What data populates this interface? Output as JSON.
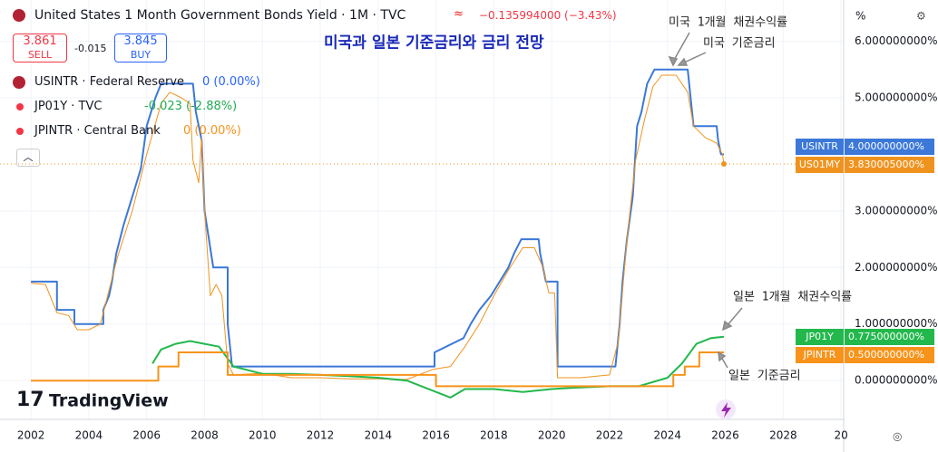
{
  "header": {
    "symbol_title": "United States 1 Month Government Bonds Yield · 1M · TVC",
    "change": "−0.135994000 (−3.43%)"
  },
  "trade": {
    "sell_price": "3.861",
    "sell_label": "SELL",
    "spread": "-0.015",
    "buy_price": "3.845",
    "buy_label": "BUY"
  },
  "legend": [
    {
      "label": "USINTR · Federal Reserve",
      "value": "0 (0.00%)",
      "color": "#2962ff"
    },
    {
      "label": "JP01Y · TVC",
      "value": "-0.023 (-2.88%)",
      "color": "#22ab52"
    },
    {
      "label": "JPINTR · Central Bank",
      "value": "0 (0.00%)",
      "color": "#f7931a"
    }
  ],
  "axis_unit": "%",
  "brand": "TradingView",
  "chart_data": {
    "type": "line",
    "title": "미국과 일본 기준금리와 금리 전망",
    "xlim": [
      2000.93,
      2030.09
    ],
    "ylim": [
      -0.67,
      6.73
    ],
    "grid": true,
    "xticks": [
      2002,
      2004,
      2006,
      2008,
      2010,
      2012,
      2014,
      2016,
      2018,
      2020,
      2022,
      2024,
      2026,
      2028,
      {
        "value": 2030,
        "label": "20"
      }
    ],
    "yticks": [
      {
        "value": 0,
        "label": "0.000000000%"
      },
      {
        "value": 1,
        "label": "1.000000000%"
      },
      {
        "value": 2,
        "label": "2.000000000%"
      },
      {
        "value": 3,
        "label": "3.000000000%"
      },
      {
        "value": 5,
        "label": "5.000000000%"
      },
      {
        "value": 6,
        "label": "6.000000000%"
      }
    ],
    "series": [
      {
        "name": "USINTR",
        "color": "#3b78d8",
        "value_label": "4.000000000%",
        "x": [
          2002.0,
          2002.9,
          2002.9,
          2003.5,
          2003.5,
          2004.5,
          2004.5,
          2004.7,
          2004.8,
          2004.95,
          2005.2,
          2005.5,
          2005.8,
          2006.0,
          2006.3,
          2006.5,
          2007.6,
          2007.7,
          2007.9,
          2008.0,
          2008.3,
          2008.8,
          2008.8,
          2008.95,
          2015.95,
          2015.95,
          2016.95,
          2017.2,
          2017.5,
          2017.9,
          2018.2,
          2018.5,
          2018.7,
          2018.95,
          2019.55,
          2019.6,
          2019.7,
          2019.8,
          2020.2,
          2020.2,
          2022.2,
          2022.35,
          2022.45,
          2022.6,
          2022.8,
          2022.95,
          2023.1,
          2023.3,
          2023.55,
          2024.7,
          2024.8,
          2024.9,
          2025.7,
          2025.75,
          2025.85,
          2025.95
        ],
        "values": [
          1.75,
          1.75,
          1.25,
          1.25,
          1.0,
          1.0,
          1.25,
          1.5,
          1.75,
          2.25,
          2.75,
          3.25,
          3.75,
          4.5,
          5.0,
          5.25,
          5.25,
          4.75,
          4.25,
          3.0,
          2.0,
          2.0,
          1.0,
          0.25,
          0.25,
          0.5,
          0.75,
          1.0,
          1.25,
          1.5,
          1.75,
          2.0,
          2.25,
          2.5,
          2.5,
          2.25,
          2.0,
          1.75,
          1.75,
          0.25,
          0.25,
          1.0,
          1.75,
          2.5,
          3.25,
          4.5,
          4.75,
          5.25,
          5.5,
          5.5,
          5.0,
          4.5,
          4.5,
          4.25,
          4.0,
          4.0
        ]
      },
      {
        "name": "US01MY",
        "color": "#f0931e",
        "value_label": "3.830005000%",
        "x": [
          2002.0,
          2002.5,
          2002.9,
          2003.3,
          2003.6,
          2004.0,
          2004.4,
          2004.7,
          2005.0,
          2005.5,
          2006.0,
          2006.5,
          2006.8,
          2007.2,
          2007.5,
          2007.6,
          2007.8,
          2007.9,
          2008.0,
          2008.2,
          2008.4,
          2008.6,
          2008.8,
          2009.0,
          2010.0,
          2011.0,
          2012.0,
          2013.0,
          2014.0,
          2015.0,
          2015.9,
          2016.5,
          2017.0,
          2017.5,
          2018.0,
          2018.5,
          2019.0,
          2019.4,
          2019.7,
          2019.9,
          2020.1,
          2020.2,
          2021.0,
          2022.0,
          2022.3,
          2022.6,
          2022.9,
          2023.2,
          2023.5,
          2023.8,
          2024.3,
          2024.7,
          2024.9,
          2025.3,
          2025.7,
          2025.9,
          2025.95
        ],
        "values": [
          1.72,
          1.7,
          1.2,
          1.15,
          0.9,
          0.9,
          1.0,
          1.6,
          2.2,
          3.0,
          4.0,
          4.9,
          5.1,
          5.0,
          4.9,
          3.9,
          3.5,
          4.3,
          3.0,
          1.5,
          1.7,
          1.5,
          0.3,
          0.1,
          0.13,
          0.05,
          0.05,
          0.03,
          0.03,
          0.02,
          0.2,
          0.25,
          0.6,
          1.0,
          1.5,
          1.95,
          2.35,
          2.35,
          2.0,
          1.55,
          1.55,
          0.05,
          0.05,
          0.1,
          0.7,
          2.5,
          3.9,
          4.6,
          5.2,
          5.4,
          5.4,
          5.1,
          4.5,
          4.3,
          4.2,
          4.0,
          3.83
        ]
      },
      {
        "name": "JP01Y",
        "color": "#22b84c",
        "value_label": "0.775000000%",
        "x": [
          2006.2,
          2006.5,
          2007.0,
          2007.5,
          2008.0,
          2008.5,
          2009.0,
          2010.0,
          2011.0,
          2012.0,
          2013.0,
          2014.0,
          2015.0,
          2016.0,
          2016.5,
          2017.0,
          2018.0,
          2019.0,
          2020.0,
          2021.0,
          2022.0,
          2023.0,
          2024.0,
          2024.5,
          2025.0,
          2025.5,
          2025.95
        ],
        "values": [
          0.3,
          0.55,
          0.65,
          0.7,
          0.65,
          0.6,
          0.25,
          0.12,
          0.12,
          0.1,
          0.08,
          0.05,
          0.0,
          -0.2,
          -0.3,
          -0.15,
          -0.15,
          -0.2,
          -0.15,
          -0.12,
          -0.1,
          -0.1,
          0.05,
          0.3,
          0.65,
          0.75,
          0.775
        ]
      },
      {
        "name": "JPINTR",
        "color": "#f7931a",
        "value_label": "0.500000000%",
        "x": [
          2002.0,
          2006.4,
          2006.4,
          2007.1,
          2007.1,
          2008.8,
          2008.8,
          2016.0,
          2016.0,
          2024.2,
          2024.2,
          2024.6,
          2024.6,
          2025.1,
          2025.1,
          2025.95
        ],
        "values": [
          0,
          0,
          0.25,
          0.25,
          0.5,
          0.5,
          0.1,
          0.1,
          -0.1,
          -0.1,
          0.1,
          0.1,
          0.25,
          0.25,
          0.5,
          0.5
        ]
      }
    ],
    "annotations": [
      "미국 1개월 채권수익률",
      "미국 기준금리",
      "일본 1개월 채권수익률",
      "일본 기준금리"
    ]
  }
}
